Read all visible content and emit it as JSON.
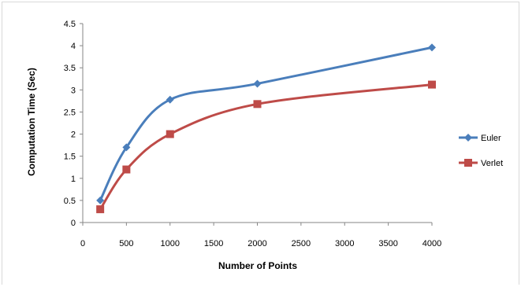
{
  "chart_data": {
    "type": "line",
    "title": "",
    "xlabel": "Number of Points",
    "ylabel": "Computation Time (Sec)",
    "xlim": [
      0,
      4000
    ],
    "ylim": [
      0,
      4.5
    ],
    "x_ticks": [
      "0",
      "500",
      "1000",
      "1500",
      "2000",
      "2500",
      "3000",
      "3500",
      "4000"
    ],
    "y_ticks": [
      "0",
      "0.5",
      "1",
      "1.5",
      "2",
      "2.5",
      "3",
      "3.5",
      "4",
      "4.5"
    ],
    "grid": false,
    "smooth": true,
    "legend_position": "right",
    "series": [
      {
        "name": "Euler",
        "color": "#4a7ebb",
        "marker": "diamond",
        "x": [
          200,
          500,
          1000,
          2000,
          4000
        ],
        "y": [
          0.5,
          1.7,
          2.78,
          3.14,
          3.96
        ]
      },
      {
        "name": "Verlet",
        "color": "#be4b48",
        "marker": "square",
        "x": [
          200,
          500,
          1000,
          2000,
          4000
        ],
        "y": [
          0.3,
          1.2,
          2.0,
          2.68,
          3.12
        ]
      }
    ]
  }
}
